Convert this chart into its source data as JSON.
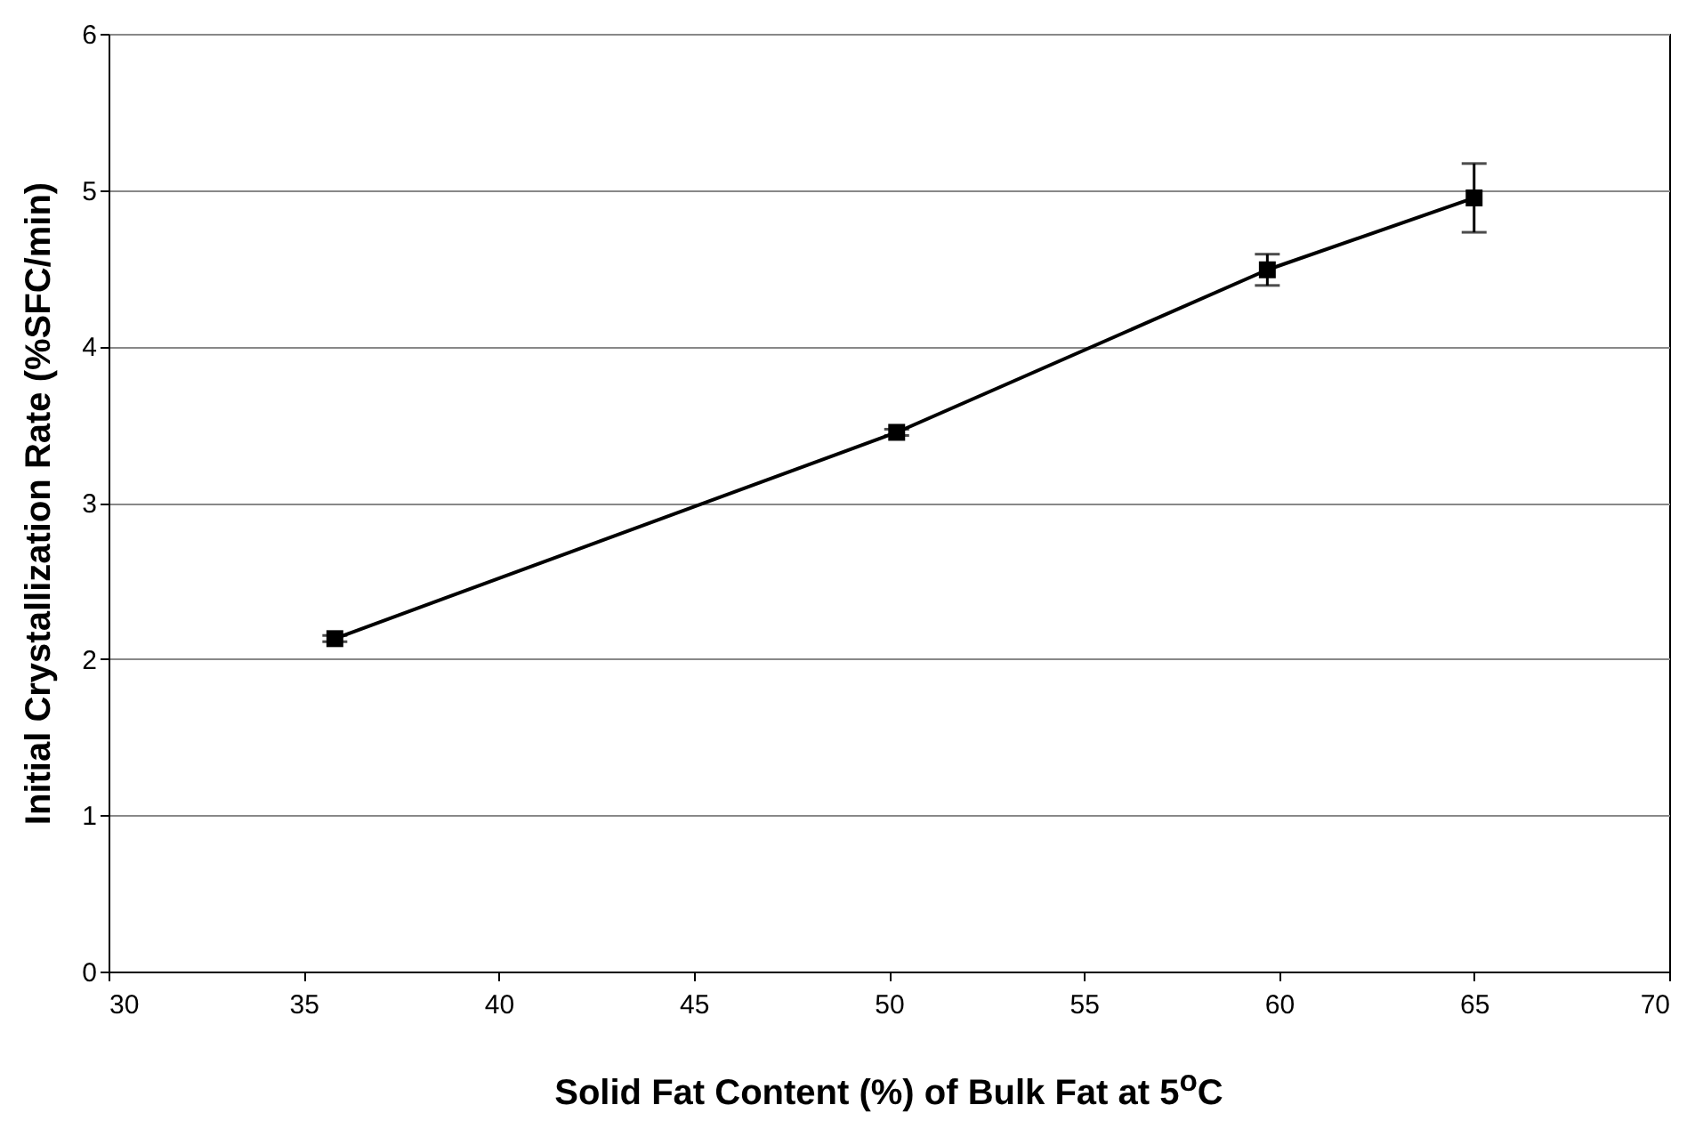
{
  "chart_data": {
    "type": "line",
    "xlabel": "Solid Fat Content (%) of Bulk Fat at 5$^{o}$C",
    "ylabel": "Initial Crystallization Rate (%SFC/min)",
    "x": [
      35.8,
      50.2,
      59.7,
      65.0
    ],
    "series": [
      {
        "color": "#000000",
        "values": [
          2.13,
          3.45,
          4.49,
          4.95
        ],
        "errors": [
          0.02,
          0.02,
          0.1,
          0.22
        ]
      }
    ],
    "xlim": [
      30,
      70
    ],
    "xticks": [
      30,
      35,
      40,
      45,
      50,
      55,
      60,
      65,
      70
    ],
    "ylim": [
      0,
      6
    ],
    "yticks": [
      0,
      1,
      2,
      3,
      4,
      5,
      6
    ],
    "grid": "y",
    "marker": "square",
    "line_style": "solid"
  }
}
